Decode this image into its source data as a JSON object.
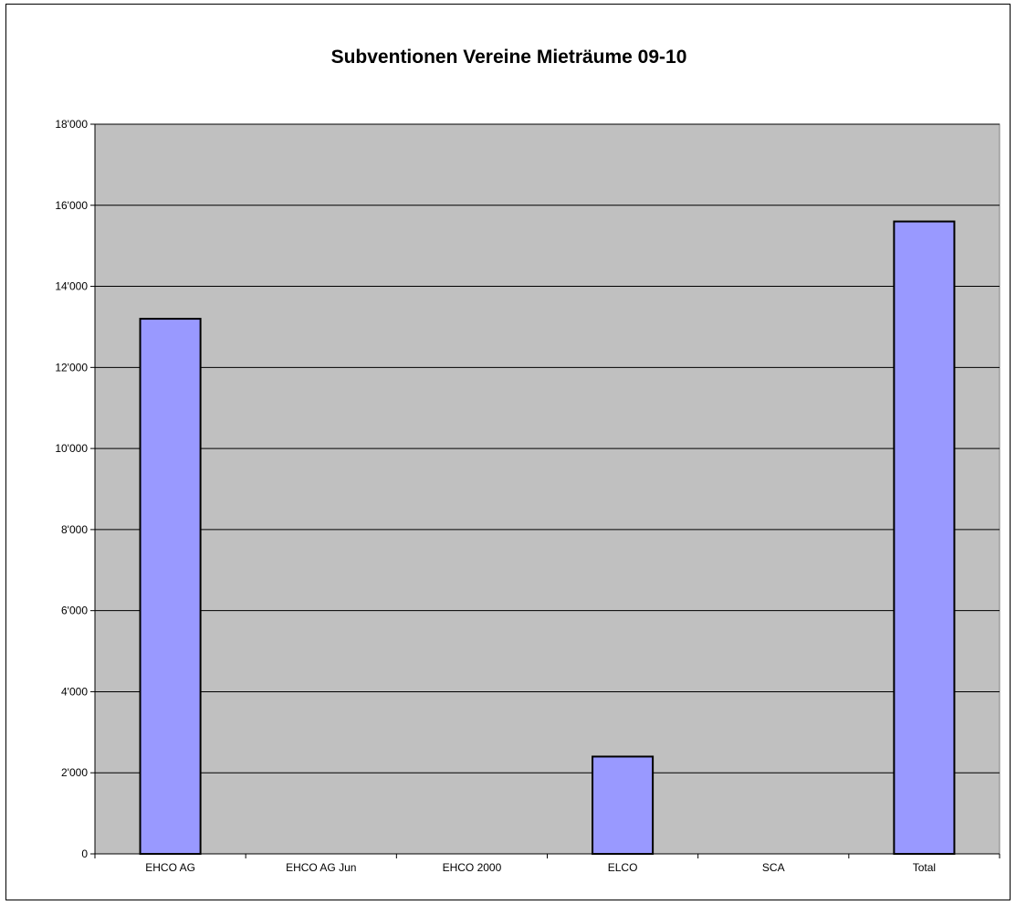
{
  "chart_data": {
    "type": "bar",
    "title": "Subventionen Vereine Mieträume 09-10",
    "categories": [
      "EHCO AG",
      "EHCO AG Jun",
      "EHCO 2000",
      "ELCO",
      "SCA",
      "Total"
    ],
    "values": [
      13200,
      0,
      0,
      2400,
      0,
      15600
    ],
    "xlabel": "",
    "ylabel": "",
    "ylim": [
      0,
      18000
    ],
    "yticks": [
      0,
      2000,
      4000,
      6000,
      8000,
      10000,
      12000,
      14000,
      16000,
      18000
    ],
    "ytick_labels": [
      "0",
      "2'000",
      "4'000",
      "6'000",
      "8'000",
      "10'000",
      "12'000",
      "14'000",
      "16'000",
      "18'000"
    ],
    "grid": true,
    "legend": "none",
    "colors": {
      "bar": "#9999ff",
      "plot_background": "#c0c0c0",
      "gridline": "#000000"
    }
  }
}
